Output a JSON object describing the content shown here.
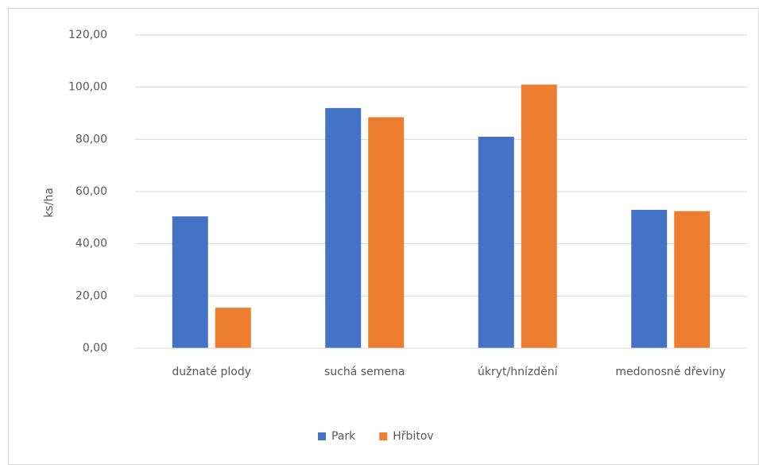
{
  "chart_data": {
    "type": "bar",
    "categories": [
      "dužnaté plody",
      "suchá semena",
      "úkryt/hnízdění",
      "medonosné dřeviny"
    ],
    "series": [
      {
        "name": "Park",
        "color": "#4472c4",
        "values": [
          50.5,
          92,
          81,
          53
        ]
      },
      {
        "name": "Hřbitov",
        "color": "#ed7d31",
        "values": [
          15.5,
          88.5,
          101,
          52.5
        ]
      }
    ],
    "ylabel": "ks/ha",
    "ylim": [
      0,
      120
    ],
    "yticks": [
      {
        "value": 0,
        "label": "0,00"
      },
      {
        "value": 20,
        "label": "20,00"
      },
      {
        "value": 40,
        "label": "40,00"
      },
      {
        "value": 60,
        "label": "60,00"
      },
      {
        "value": 80,
        "label": "80,00"
      },
      {
        "value": 100,
        "label": "100,00"
      },
      {
        "value": 120,
        "label": "120,00"
      }
    ],
    "grid": true,
    "legend": "bottom"
  }
}
